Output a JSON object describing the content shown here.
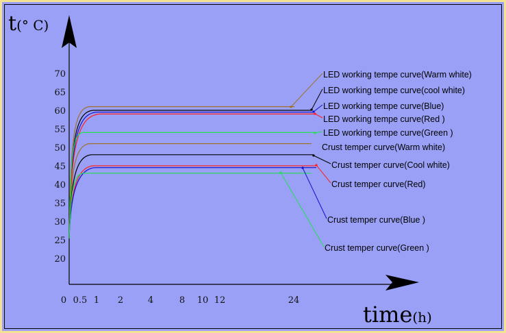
{
  "chart_data": {
    "type": "line",
    "ylabel": {
      "symbol": "t",
      "unit": "(° C)"
    },
    "xlabel": {
      "symbol": "time",
      "unit": "(h)"
    },
    "y_ticks": [
      20,
      25,
      30,
      35,
      40,
      45,
      50,
      55,
      60,
      65,
      70
    ],
    "x_ticks": [
      "0",
      "0.5",
      "1",
      "2",
      "4",
      "8",
      "10",
      "12",
      "24"
    ],
    "start_value": 25,
    "series": [
      {
        "name": "LED working tempe curve(Warm white)",
        "color": "#a0702a",
        "plateau": 61
      },
      {
        "name": "LED working tempe curve(cool white)",
        "color": "#000000",
        "plateau": 60
      },
      {
        "name": "LED working tempe curve(Blue)",
        "color": "#1010d0",
        "plateau": 59.5
      },
      {
        "name": "LED working tempe curve(Red )",
        "color": "#ff2020",
        "plateau": 59
      },
      {
        "name": "LED working tempe curve(Green )",
        "color": "#20e050",
        "plateau": 54
      },
      {
        "name": "Crust temper curve(Warm white)",
        "color": "#a0702a",
        "plateau": 51
      },
      {
        "name": "Crust temper curve(Cool white)",
        "color": "#000000",
        "plateau": 48
      },
      {
        "name": "Crust temper curve(Red)",
        "color": "#ff2020",
        "plateau": 45
      },
      {
        "name": "Crust temper curve(Blue )",
        "color": "#1010d0",
        "plateau": 44.5
      },
      {
        "name": "Crust temper curve(Green )",
        "color": "#20e050",
        "plateau": 43
      }
    ]
  }
}
